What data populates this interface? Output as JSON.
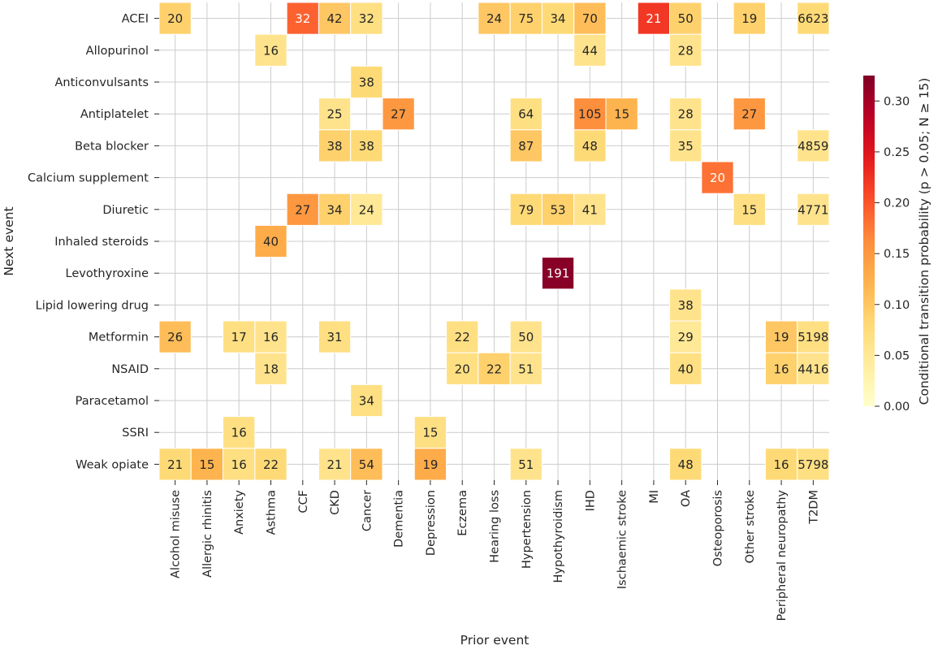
{
  "chart_data": {
    "type": "heatmap",
    "title": "",
    "xlabel": "Prior event",
    "ylabel": "Next event",
    "colorbar_label": "Conditional transition probability ($p > 0.05; N \\geq 15$)",
    "colorbar_label_display": "Conditional transition probability (p > 0.05; N ≥ 15)",
    "colormap": "YlOrRd",
    "vmin": 0.0,
    "vmax": 0.325,
    "colorbar_ticks": [
      "0.00",
      "0.05",
      "0.10",
      "0.15",
      "0.20",
      "0.25",
      "0.30"
    ],
    "grid": true,
    "x_categories": [
      "Alcohol misuse",
      "Allergic rhinitis",
      "Anxiety",
      "Asthma",
      "CCF",
      "CKD",
      "Cancer",
      "Dementia",
      "Depression",
      "Eczema",
      "Hearing loss",
      "Hypertension",
      "Hypothyroidism",
      "IHD",
      "Ischaemic stroke",
      "MI",
      "OA",
      "Osteoporosis",
      "Other stroke",
      "Peripheral neuropathy",
      "T2DM"
    ],
    "y_categories": [
      "ACEI",
      "Allopurinol",
      "Anticonvulsants",
      "Antiplatelet",
      "Beta blocker",
      "Calcium supplement",
      "Diuretic",
      "Inhaled steroids",
      "Levothyroxine",
      "Lipid lowering drug",
      "Metformin",
      "NSAID",
      "Paracetamol",
      "SSRI",
      "Weak opiate"
    ],
    "cells": [
      {
        "y": "ACEI",
        "x": "Alcohol misuse",
        "value": 0.09,
        "label": "20"
      },
      {
        "y": "ACEI",
        "x": "CCF",
        "value": 0.19,
        "label": "32"
      },
      {
        "y": "ACEI",
        "x": "CKD",
        "value": 0.1,
        "label": "42"
      },
      {
        "y": "ACEI",
        "x": "Cancer",
        "value": 0.07,
        "label": "32"
      },
      {
        "y": "ACEI",
        "x": "Hearing loss",
        "value": 0.1,
        "label": "24"
      },
      {
        "y": "ACEI",
        "x": "Hypertension",
        "value": 0.09,
        "label": "75"
      },
      {
        "y": "ACEI",
        "x": "Hypothyroidism",
        "value": 0.08,
        "label": "34"
      },
      {
        "y": "ACEI",
        "x": "IHD",
        "value": 0.11,
        "label": "70"
      },
      {
        "y": "ACEI",
        "x": "MI",
        "value": 0.22,
        "label": "21"
      },
      {
        "y": "ACEI",
        "x": "OA",
        "value": 0.09,
        "label": "50"
      },
      {
        "y": "ACEI",
        "x": "Other stroke",
        "value": 0.09,
        "label": "19"
      },
      {
        "y": "ACEI",
        "x": "T2DM",
        "value": 0.08,
        "label": "6623"
      },
      {
        "y": "Allopurinol",
        "x": "Asthma",
        "value": 0.06,
        "label": "16"
      },
      {
        "y": "Allopurinol",
        "x": "IHD",
        "value": 0.06,
        "label": "44"
      },
      {
        "y": "Allopurinol",
        "x": "OA",
        "value": 0.06,
        "label": "28"
      },
      {
        "y": "Anticonvulsants",
        "x": "Cancer",
        "value": 0.08,
        "label": "38"
      },
      {
        "y": "Antiplatelet",
        "x": "CKD",
        "value": 0.06,
        "label": "25"
      },
      {
        "y": "Antiplatelet",
        "x": "Dementia",
        "value": 0.15,
        "label": "27"
      },
      {
        "y": "Antiplatelet",
        "x": "Hypertension",
        "value": 0.07,
        "label": "64"
      },
      {
        "y": "Antiplatelet",
        "x": "IHD",
        "value": 0.16,
        "label": "105"
      },
      {
        "y": "Antiplatelet",
        "x": "Ischaemic stroke",
        "value": 0.12,
        "label": "15"
      },
      {
        "y": "Antiplatelet",
        "x": "OA",
        "value": 0.06,
        "label": "28"
      },
      {
        "y": "Antiplatelet",
        "x": "Other stroke",
        "value": 0.15,
        "label": "27"
      },
      {
        "y": "Beta blocker",
        "x": "CKD",
        "value": 0.09,
        "label": "38"
      },
      {
        "y": "Beta blocker",
        "x": "Cancer",
        "value": 0.08,
        "label": "38"
      },
      {
        "y": "Beta blocker",
        "x": "Hypertension",
        "value": 0.1,
        "label": "87"
      },
      {
        "y": "Beta blocker",
        "x": "IHD",
        "value": 0.08,
        "label": "48"
      },
      {
        "y": "Beta blocker",
        "x": "OA",
        "value": 0.06,
        "label": "35"
      },
      {
        "y": "Beta blocker",
        "x": "T2DM",
        "value": 0.06,
        "label": "4859"
      },
      {
        "y": "Calcium supplement",
        "x": "Osteoporosis",
        "value": 0.18,
        "label": "20"
      },
      {
        "y": "Diuretic",
        "x": "CCF",
        "value": 0.15,
        "label": "27"
      },
      {
        "y": "Diuretic",
        "x": "CKD",
        "value": 0.09,
        "label": "34"
      },
      {
        "y": "Diuretic",
        "x": "Cancer",
        "value": 0.05,
        "label": "24"
      },
      {
        "y": "Diuretic",
        "x": "Hypertension",
        "value": 0.08,
        "label": "79"
      },
      {
        "y": "Diuretic",
        "x": "Hypothyroidism",
        "value": 0.09,
        "label": "53"
      },
      {
        "y": "Diuretic",
        "x": "IHD",
        "value": 0.06,
        "label": "41"
      },
      {
        "y": "Diuretic",
        "x": "Other stroke",
        "value": 0.07,
        "label": "15"
      },
      {
        "y": "Diuretic",
        "x": "T2DM",
        "value": 0.06,
        "label": "4771"
      },
      {
        "y": "Inhaled steroids",
        "x": "Asthma",
        "value": 0.13,
        "label": "40"
      },
      {
        "y": "Levothyroxine",
        "x": "Hypothyroidism",
        "value": 0.32,
        "label": "191"
      },
      {
        "y": "Lipid lowering drug",
        "x": "OA",
        "value": 0.06,
        "label": "38"
      },
      {
        "y": "Metformin",
        "x": "Alcohol misuse",
        "value": 0.11,
        "label": "26"
      },
      {
        "y": "Metformin",
        "x": "Anxiety",
        "value": 0.07,
        "label": "17"
      },
      {
        "y": "Metformin",
        "x": "Asthma",
        "value": 0.06,
        "label": "16"
      },
      {
        "y": "Metformin",
        "x": "CKD",
        "value": 0.07,
        "label": "31"
      },
      {
        "y": "Metformin",
        "x": "Eczema",
        "value": 0.07,
        "label": "22"
      },
      {
        "y": "Metformin",
        "x": "Hypertension",
        "value": 0.06,
        "label": "50"
      },
      {
        "y": "Metformin",
        "x": "OA",
        "value": 0.05,
        "label": "29"
      },
      {
        "y": "Metformin",
        "x": "Peripheral neuropathy",
        "value": 0.1,
        "label": "19"
      },
      {
        "y": "Metformin",
        "x": "T2DM",
        "value": 0.07,
        "label": "5198"
      },
      {
        "y": "NSAID",
        "x": "Asthma",
        "value": 0.06,
        "label": "18"
      },
      {
        "y": "NSAID",
        "x": "Eczema",
        "value": 0.07,
        "label": "20"
      },
      {
        "y": "NSAID",
        "x": "Hearing loss",
        "value": 0.09,
        "label": "22"
      },
      {
        "y": "NSAID",
        "x": "Hypertension",
        "value": 0.06,
        "label": "51"
      },
      {
        "y": "NSAID",
        "x": "OA",
        "value": 0.07,
        "label": "40"
      },
      {
        "y": "NSAID",
        "x": "Peripheral neuropathy",
        "value": 0.09,
        "label": "16"
      },
      {
        "y": "NSAID",
        "x": "T2DM",
        "value": 0.06,
        "label": "4416"
      },
      {
        "y": "Paracetamol",
        "x": "Cancer",
        "value": 0.07,
        "label": "34"
      },
      {
        "y": "SSRI",
        "x": "Anxiety",
        "value": 0.07,
        "label": "16"
      },
      {
        "y": "SSRI",
        "x": "Depression",
        "value": 0.07,
        "label": "15"
      },
      {
        "y": "Weak opiate",
        "x": "Alcohol misuse",
        "value": 0.08,
        "label": "21"
      },
      {
        "y": "Weak opiate",
        "x": "Allergic rhinitis",
        "value": 0.12,
        "label": "15"
      },
      {
        "y": "Weak opiate",
        "x": "Anxiety",
        "value": 0.07,
        "label": "16"
      },
      {
        "y": "Weak opiate",
        "x": "Asthma",
        "value": 0.08,
        "label": "22"
      },
      {
        "y": "Weak opiate",
        "x": "CKD",
        "value": 0.06,
        "label": "21"
      },
      {
        "y": "Weak opiate",
        "x": "Cancer",
        "value": 0.11,
        "label": "54"
      },
      {
        "y": "Weak opiate",
        "x": "Depression",
        "value": 0.13,
        "label": "19"
      },
      {
        "y": "Weak opiate",
        "x": "Hypertension",
        "value": 0.06,
        "label": "51"
      },
      {
        "y": "Weak opiate",
        "x": "OA",
        "value": 0.08,
        "label": "48"
      },
      {
        "y": "Weak opiate",
        "x": "Peripheral neuropathy",
        "value": 0.08,
        "label": "16"
      },
      {
        "y": "Weak opiate",
        "x": "T2DM",
        "value": 0.07,
        "label": "5798"
      }
    ]
  }
}
